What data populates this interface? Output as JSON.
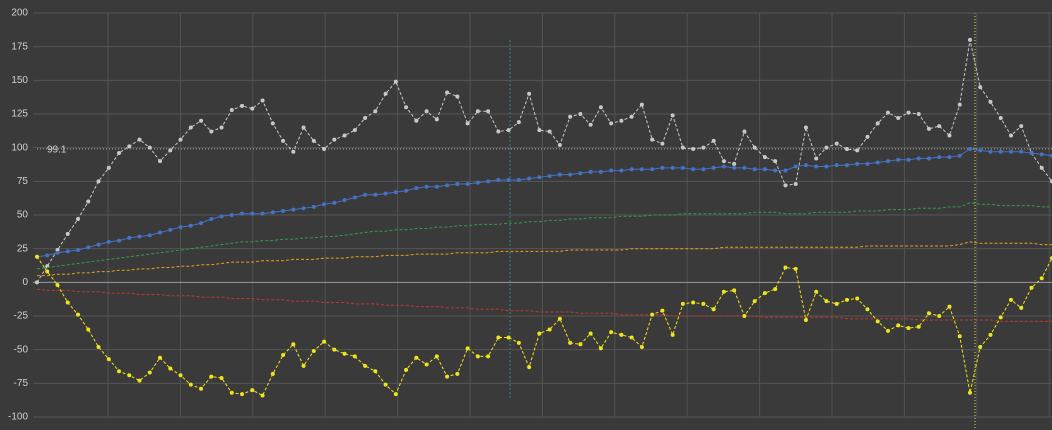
{
  "chart_data": {
    "type": "line",
    "ylim": [
      -100,
      200
    ],
    "yticks": [
      -100,
      -75,
      -50,
      -25,
      0,
      25,
      50,
      75,
      100,
      125,
      150,
      175,
      200
    ],
    "grid": true,
    "reference_line": 99.1,
    "series": [
      {
        "color": "#c8c8c8",
        "line_style": "dashed",
        "marker": true,
        "values": [
          0,
          12,
          24,
          36,
          47,
          60,
          75,
          85,
          96,
          101,
          106,
          100,
          90,
          98,
          106,
          115,
          120,
          112,
          115,
          128,
          131,
          129,
          135,
          118,
          105,
          97,
          115,
          105,
          99,
          106,
          109,
          113,
          122,
          127,
          140,
          149,
          130,
          120,
          127,
          121,
          141,
          138,
          118,
          127,
          127,
          112,
          113,
          119,
          140,
          113,
          112,
          102,
          123,
          125,
          117,
          130,
          118,
          120,
          123,
          132,
          106,
          103,
          124,
          100,
          99,
          100,
          105,
          90,
          88,
          112,
          100,
          93,
          90,
          72,
          73,
          115,
          92,
          100,
          103,
          99,
          98,
          108,
          118,
          126,
          122,
          126,
          125,
          114,
          116,
          109,
          132,
          180,
          145,
          134,
          122,
          109,
          116,
          96,
          85,
          75
        ]
      },
      {
        "color": "#4472c4",
        "line_style": "solid",
        "marker": true,
        "values": [
          19,
          20,
          22,
          23,
          24,
          26,
          28,
          30,
          31,
          33,
          34,
          35,
          37,
          39,
          41,
          42,
          44,
          47,
          49,
          50,
          51,
          51,
          51,
          52,
          53,
          54,
          55,
          56,
          58,
          59,
          61,
          63,
          65,
          65,
          66,
          67,
          68,
          70,
          71,
          71,
          72,
          73,
          73,
          74,
          75,
          76,
          76,
          76,
          77,
          78,
          79,
          80,
          80,
          81,
          82,
          82,
          83,
          83,
          84,
          84,
          84,
          85,
          85,
          85,
          84,
          84,
          85,
          86,
          85,
          85,
          84,
          84,
          83,
          83,
          86,
          87,
          86,
          86,
          87,
          87,
          88,
          88,
          89,
          90,
          91,
          91,
          92,
          92,
          93,
          93,
          94,
          99,
          98,
          97,
          97,
          97,
          97,
          96,
          95,
          94
        ]
      },
      {
        "color": "#2e9e4a",
        "line_style": "dashed",
        "marker": false,
        "values": [
          10,
          11,
          12,
          13,
          14,
          15,
          16,
          17,
          18,
          19,
          20,
          21,
          22,
          23,
          24,
          25,
          26,
          27,
          28,
          29,
          30,
          30,
          31,
          31,
          32,
          32,
          33,
          33,
          34,
          34,
          35,
          36,
          37,
          38,
          38,
          39,
          39,
          40,
          40,
          41,
          41,
          42,
          42,
          43,
          43,
          43,
          44,
          44,
          45,
          45,
          46,
          46,
          47,
          47,
          48,
          48,
          48,
          49,
          49,
          49,
          50,
          50,
          50,
          51,
          51,
          51,
          51,
          51,
          51,
          51,
          52,
          52,
          52,
          51,
          51,
          51,
          52,
          52,
          52,
          52,
          53,
          53,
          53,
          54,
          54,
          54,
          55,
          55,
          55,
          56,
          56,
          59,
          58,
          58,
          57,
          57,
          57,
          57,
          56,
          56
        ]
      },
      {
        "color": "#e6a118",
        "line_style": "dashed",
        "marker": false,
        "values": [
          5,
          5,
          6,
          6,
          7,
          7,
          8,
          8,
          9,
          9,
          10,
          10,
          11,
          11,
          12,
          12,
          13,
          13,
          14,
          15,
          15,
          15,
          16,
          16,
          16,
          17,
          17,
          17,
          18,
          18,
          18,
          19,
          19,
          19,
          20,
          20,
          20,
          21,
          21,
          21,
          21,
          22,
          22,
          22,
          22,
          23,
          23,
          23,
          23,
          23,
          23,
          23,
          24,
          24,
          24,
          24,
          24,
          24,
          25,
          25,
          25,
          25,
          25,
          25,
          25,
          25,
          25,
          26,
          26,
          26,
          26,
          26,
          26,
          26,
          26,
          26,
          26,
          26,
          26,
          26,
          26,
          27,
          27,
          27,
          27,
          27,
          27,
          27,
          27,
          27,
          28,
          30,
          29,
          29,
          29,
          29,
          29,
          29,
          28,
          28
        ]
      },
      {
        "color": "#c0392b",
        "line_style": "dashed",
        "marker": false,
        "values": [
          -5,
          -6,
          -6,
          -6,
          -7,
          -7,
          -7,
          -8,
          -8,
          -8,
          -9,
          -9,
          -9,
          -10,
          -10,
          -10,
          -11,
          -11,
          -11,
          -12,
          -12,
          -12,
          -13,
          -13,
          -13,
          -14,
          -14,
          -14,
          -15,
          -15,
          -15,
          -16,
          -16,
          -16,
          -17,
          -17,
          -17,
          -18,
          -18,
          -18,
          -19,
          -19,
          -19,
          -20,
          -20,
          -20,
          -21,
          -21,
          -21,
          -22,
          -22,
          -22,
          -22,
          -23,
          -23,
          -23,
          -23,
          -24,
          -24,
          -24,
          -24,
          -24,
          -25,
          -25,
          -25,
          -25,
          -25,
          -25,
          -25,
          -25,
          -25,
          -26,
          -26,
          -26,
          -26,
          -26,
          -26,
          -26,
          -26,
          -27,
          -27,
          -27,
          -27,
          -27,
          -27,
          -27,
          -28,
          -28,
          -28,
          -28,
          -28,
          -28,
          -28,
          -28,
          -29,
          -29,
          -29,
          -29,
          -29,
          -29
        ]
      },
      {
        "color": "#f0e41a",
        "line_style": "dashed",
        "marker": true,
        "values": [
          19,
          8,
          -2,
          -15,
          -24,
          -35,
          -48,
          -57,
          -66,
          -69,
          -73,
          -67,
          -56,
          -64,
          -69,
          -76,
          -79,
          -70,
          -71,
          -82,
          -83,
          -80,
          -84,
          -68,
          -54,
          -46,
          -62,
          -51,
          -44,
          -50,
          -53,
          -55,
          -62,
          -66,
          -76,
          -83,
          -65,
          -56,
          -61,
          -55,
          -70,
          -68,
          -49,
          -55,
          -55,
          -41,
          -41,
          -45,
          -63,
          -38,
          -35,
          -27,
          -45,
          -46,
          -38,
          -49,
          -37,
          -39,
          -41,
          -48,
          -24,
          -21,
          -39,
          -16,
          -15,
          -16,
          -20,
          -7,
          -6,
          -25,
          -14,
          -8,
          -5,
          11,
          10,
          -28,
          -7,
          -14,
          -16,
          -13,
          -12,
          -20,
          -29,
          -36,
          -32,
          -34,
          -33,
          -23,
          -25,
          -18,
          -40,
          -82,
          -48,
          -39,
          -26,
          -13,
          -19,
          -4,
          3,
          18
        ]
      }
    ]
  }
}
